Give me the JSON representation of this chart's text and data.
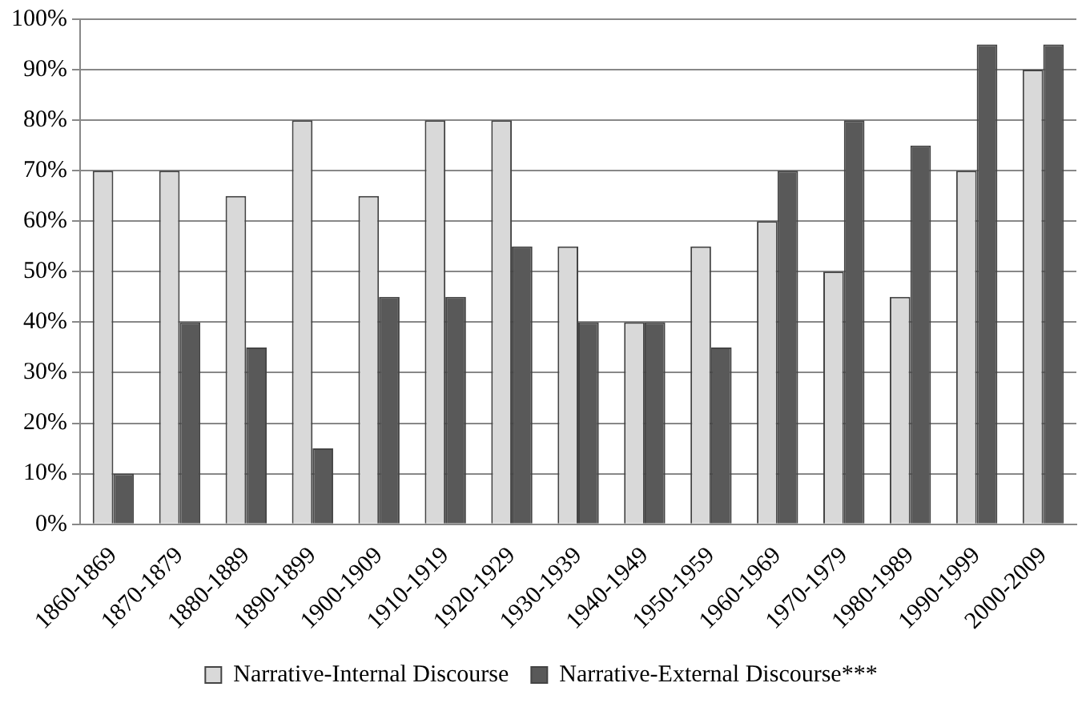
{
  "chart_data": {
    "type": "bar",
    "categories": [
      "1860-1869",
      "1870-1879",
      "1880-1889",
      "1890-1899",
      "1900-1909",
      "1910-1919",
      "1920-1929",
      "1930-1939",
      "1940-1949",
      "1950-1959",
      "1960-1969",
      "1970-1979",
      "1980-1989",
      "1990-1999",
      "2000-2009"
    ],
    "series": [
      {
        "name": "Narrative-Internal Discourse",
        "color": "#d9d9d9",
        "values": [
          70,
          70,
          65,
          80,
          65,
          80,
          80,
          55,
          40,
          55,
          60,
          50,
          45,
          70,
          90
        ]
      },
      {
        "name": "Narrative-External Discourse***",
        "color": "#595959",
        "values": [
          10,
          40,
          35,
          15,
          45,
          45,
          55,
          40,
          40,
          35,
          70,
          80,
          75,
          95,
          95
        ]
      }
    ],
    "ylim": [
      0,
      100
    ],
    "yticks": [
      {
        "value": 0,
        "label": "0%"
      },
      {
        "value": 10,
        "label": "10%"
      },
      {
        "value": 20,
        "label": "20%"
      },
      {
        "value": 30,
        "label": "30%"
      },
      {
        "value": 40,
        "label": "40%"
      },
      {
        "value": 50,
        "label": "50%"
      },
      {
        "value": 60,
        "label": "60%"
      },
      {
        "value": 70,
        "label": "70%"
      },
      {
        "value": 80,
        "label": "80%"
      },
      {
        "value": 90,
        "label": "90%"
      },
      {
        "value": 100,
        "label": "100%"
      }
    ],
    "grid": "y",
    "legend": "bottom"
  }
}
